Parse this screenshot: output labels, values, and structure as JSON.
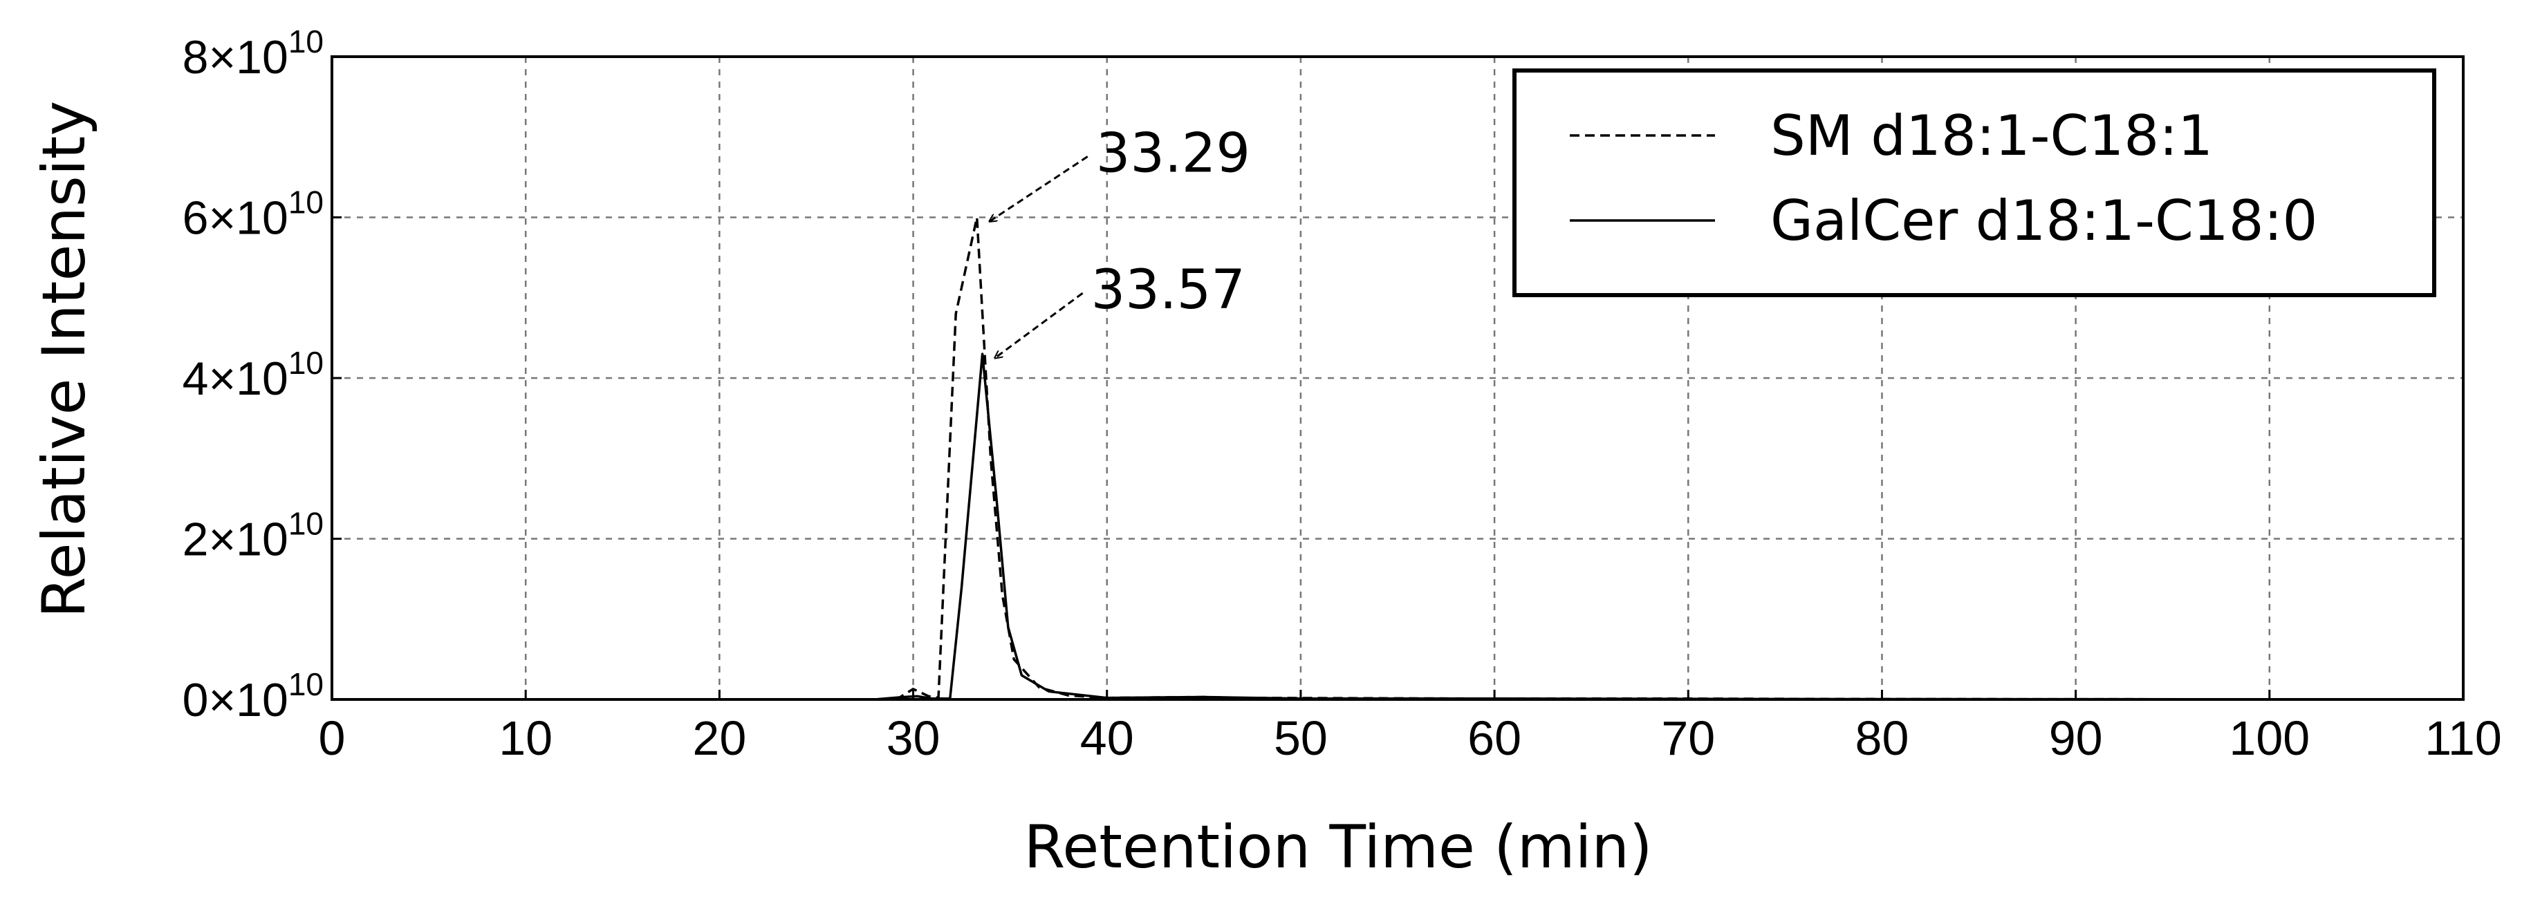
{
  "chart_data": {
    "type": "line",
    "title": "",
    "xlabel": "Retention Time (min)",
    "ylabel": "Relative Intensity",
    "xlim": [
      0,
      110
    ],
    "ylim": [
      0,
      80000000000.0
    ],
    "grid": true,
    "legend_position": "top-right",
    "x_ticks": [
      {
        "value": 0,
        "label": "0"
      },
      {
        "value": 10,
        "label": "10"
      },
      {
        "value": 20,
        "label": "20"
      },
      {
        "value": 30,
        "label": "30"
      },
      {
        "value": 40,
        "label": "40"
      },
      {
        "value": 50,
        "label": "50"
      },
      {
        "value": 60,
        "label": "60"
      },
      {
        "value": 70,
        "label": "70"
      },
      {
        "value": 80,
        "label": "80"
      },
      {
        "value": 90,
        "label": "90"
      },
      {
        "value": 100,
        "label": "100"
      },
      {
        "value": 110,
        "label": "110"
      }
    ],
    "y_ticks": [
      {
        "value": 0,
        "base": "0×10",
        "exp": "10"
      },
      {
        "value": 20000000000.0,
        "base": "2×10",
        "exp": "10"
      },
      {
        "value": 40000000000.0,
        "base": "4×10",
        "exp": "10"
      },
      {
        "value": 60000000000.0,
        "base": "6×10",
        "exp": "10"
      },
      {
        "value": 80000000000.0,
        "base": "8×10",
        "exp": "10"
      }
    ],
    "series": [
      {
        "name": "SM d18:1-C18:1",
        "style": "dashed",
        "color": "#000000",
        "points": [
          [
            0,
            0
          ],
          [
            28,
            0
          ],
          [
            29.2,
            100000000.0
          ],
          [
            30,
            1300000000.0
          ],
          [
            30.8,
            400000000.0
          ],
          [
            31.3,
            200000000.0
          ],
          [
            32.2,
            48000000000.0
          ],
          [
            33.29,
            60000000000.0
          ],
          [
            34.0,
            30000000000.0
          ],
          [
            34.6,
            13000000000.0
          ],
          [
            35.2,
            5000000000.0
          ],
          [
            36.5,
            1500000000.0
          ],
          [
            38,
            500000000.0
          ],
          [
            40,
            200000000.0
          ],
          [
            45,
            300000000.0
          ],
          [
            47,
            200000000.0
          ],
          [
            60,
            100000000.0
          ],
          [
            70,
            100000000.0
          ],
          [
            78,
            50000000.0
          ],
          [
            110,
            0
          ]
        ]
      },
      {
        "name": "GalCer d18:1-C18:0",
        "style": "solid",
        "color": "#000000",
        "points": [
          [
            0,
            0
          ],
          [
            28,
            0
          ],
          [
            29.5,
            300000000.0
          ],
          [
            30.2,
            400000000.0
          ],
          [
            31,
            100000000.0
          ],
          [
            31.9,
            100000000.0
          ],
          [
            32.5,
            14000000000.0
          ],
          [
            33.57,
            43000000000.0
          ],
          [
            34.3,
            25000000000.0
          ],
          [
            34.9,
            9000000000.0
          ],
          [
            35.6,
            3000000000.0
          ],
          [
            37,
            1000000000.0
          ],
          [
            40,
            200000000.0
          ],
          [
            45,
            300000000.0
          ],
          [
            50,
            100000000.0
          ],
          [
            60,
            100000000.0
          ],
          [
            75,
            50000000.0
          ],
          [
            110,
            0
          ]
        ]
      }
    ],
    "annotations": [
      {
        "text": "33.29",
        "x": 33.29,
        "y": 60000000000.0
      },
      {
        "text": "33.57",
        "x": 33.57,
        "y": 43000000000.0
      }
    ]
  }
}
